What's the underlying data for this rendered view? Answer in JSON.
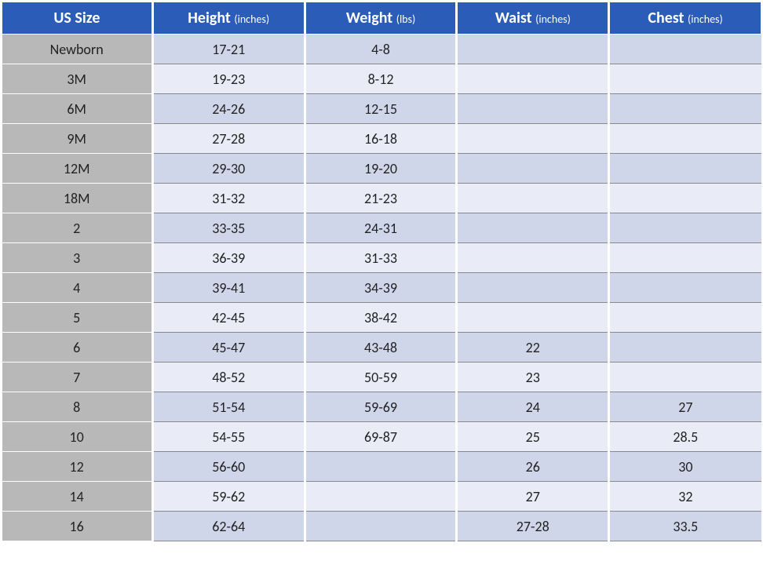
{
  "table": {
    "columns": [
      {
        "label": "US Size",
        "unit": ""
      },
      {
        "label": "Height",
        "unit": "(inches)"
      },
      {
        "label": "Weight",
        "unit": "(lbs)"
      },
      {
        "label": "Waist",
        "unit": "(inches)"
      },
      {
        "label": "Chest",
        "unit": "(inches)"
      }
    ],
    "rows": [
      {
        "size": "Newborn",
        "height": "17-21",
        "weight": "4-8",
        "waist": "",
        "chest": ""
      },
      {
        "size": "3M",
        "height": "19-23",
        "weight": "8-12",
        "waist": "",
        "chest": ""
      },
      {
        "size": "6M",
        "height": "24-26",
        "weight": "12-15",
        "waist": "",
        "chest": ""
      },
      {
        "size": "9M",
        "height": "27-28",
        "weight": "16-18",
        "waist": "",
        "chest": ""
      },
      {
        "size": "12M",
        "height": "29-30",
        "weight": "19-20",
        "waist": "",
        "chest": ""
      },
      {
        "size": "18M",
        "height": "31-32",
        "weight": "21-23",
        "waist": "",
        "chest": ""
      },
      {
        "size": "2",
        "height": "33-35",
        "weight": "24-31",
        "waist": "",
        "chest": ""
      },
      {
        "size": "3",
        "height": "36-39",
        "weight": "31-33",
        "waist": "",
        "chest": ""
      },
      {
        "size": "4",
        "height": "39-41",
        "weight": "34-39",
        "waist": "",
        "chest": ""
      },
      {
        "size": "5",
        "height": "42-45",
        "weight": "38-42",
        "waist": "",
        "chest": ""
      },
      {
        "size": "6",
        "height": "45-47",
        "weight": "43-48",
        "waist": "22",
        "chest": ""
      },
      {
        "size": "7",
        "height": "48-52",
        "weight": "50-59",
        "waist": "23",
        "chest": ""
      },
      {
        "size": "8",
        "height": "51-54",
        "weight": "59-69",
        "waist": "24",
        "chest": "27"
      },
      {
        "size": "10",
        "height": "54-55",
        "weight": "69-87",
        "waist": "25",
        "chest": "28.5"
      },
      {
        "size": "12",
        "height": "56-60",
        "weight": "",
        "waist": "26",
        "chest": "30"
      },
      {
        "size": "14",
        "height": "59-62",
        "weight": "",
        "waist": "27",
        "chest": "32"
      },
      {
        "size": "16",
        "height": "62-64",
        "weight": "",
        "waist": "27-28",
        "chest": "33.5"
      }
    ],
    "colors": {
      "header_bg": "#2a5cb8",
      "header_text": "#ffffff",
      "size_col_bg": "#b8b8b8",
      "row_odd_bg": "#d0d6ea",
      "row_even_bg": "#e9ecf6",
      "cell_border": "#888888",
      "white_gap": "#ffffff",
      "text_color": "#222222"
    },
    "fontsize": {
      "header": 20,
      "header_unit": 14,
      "cell": 18
    }
  }
}
